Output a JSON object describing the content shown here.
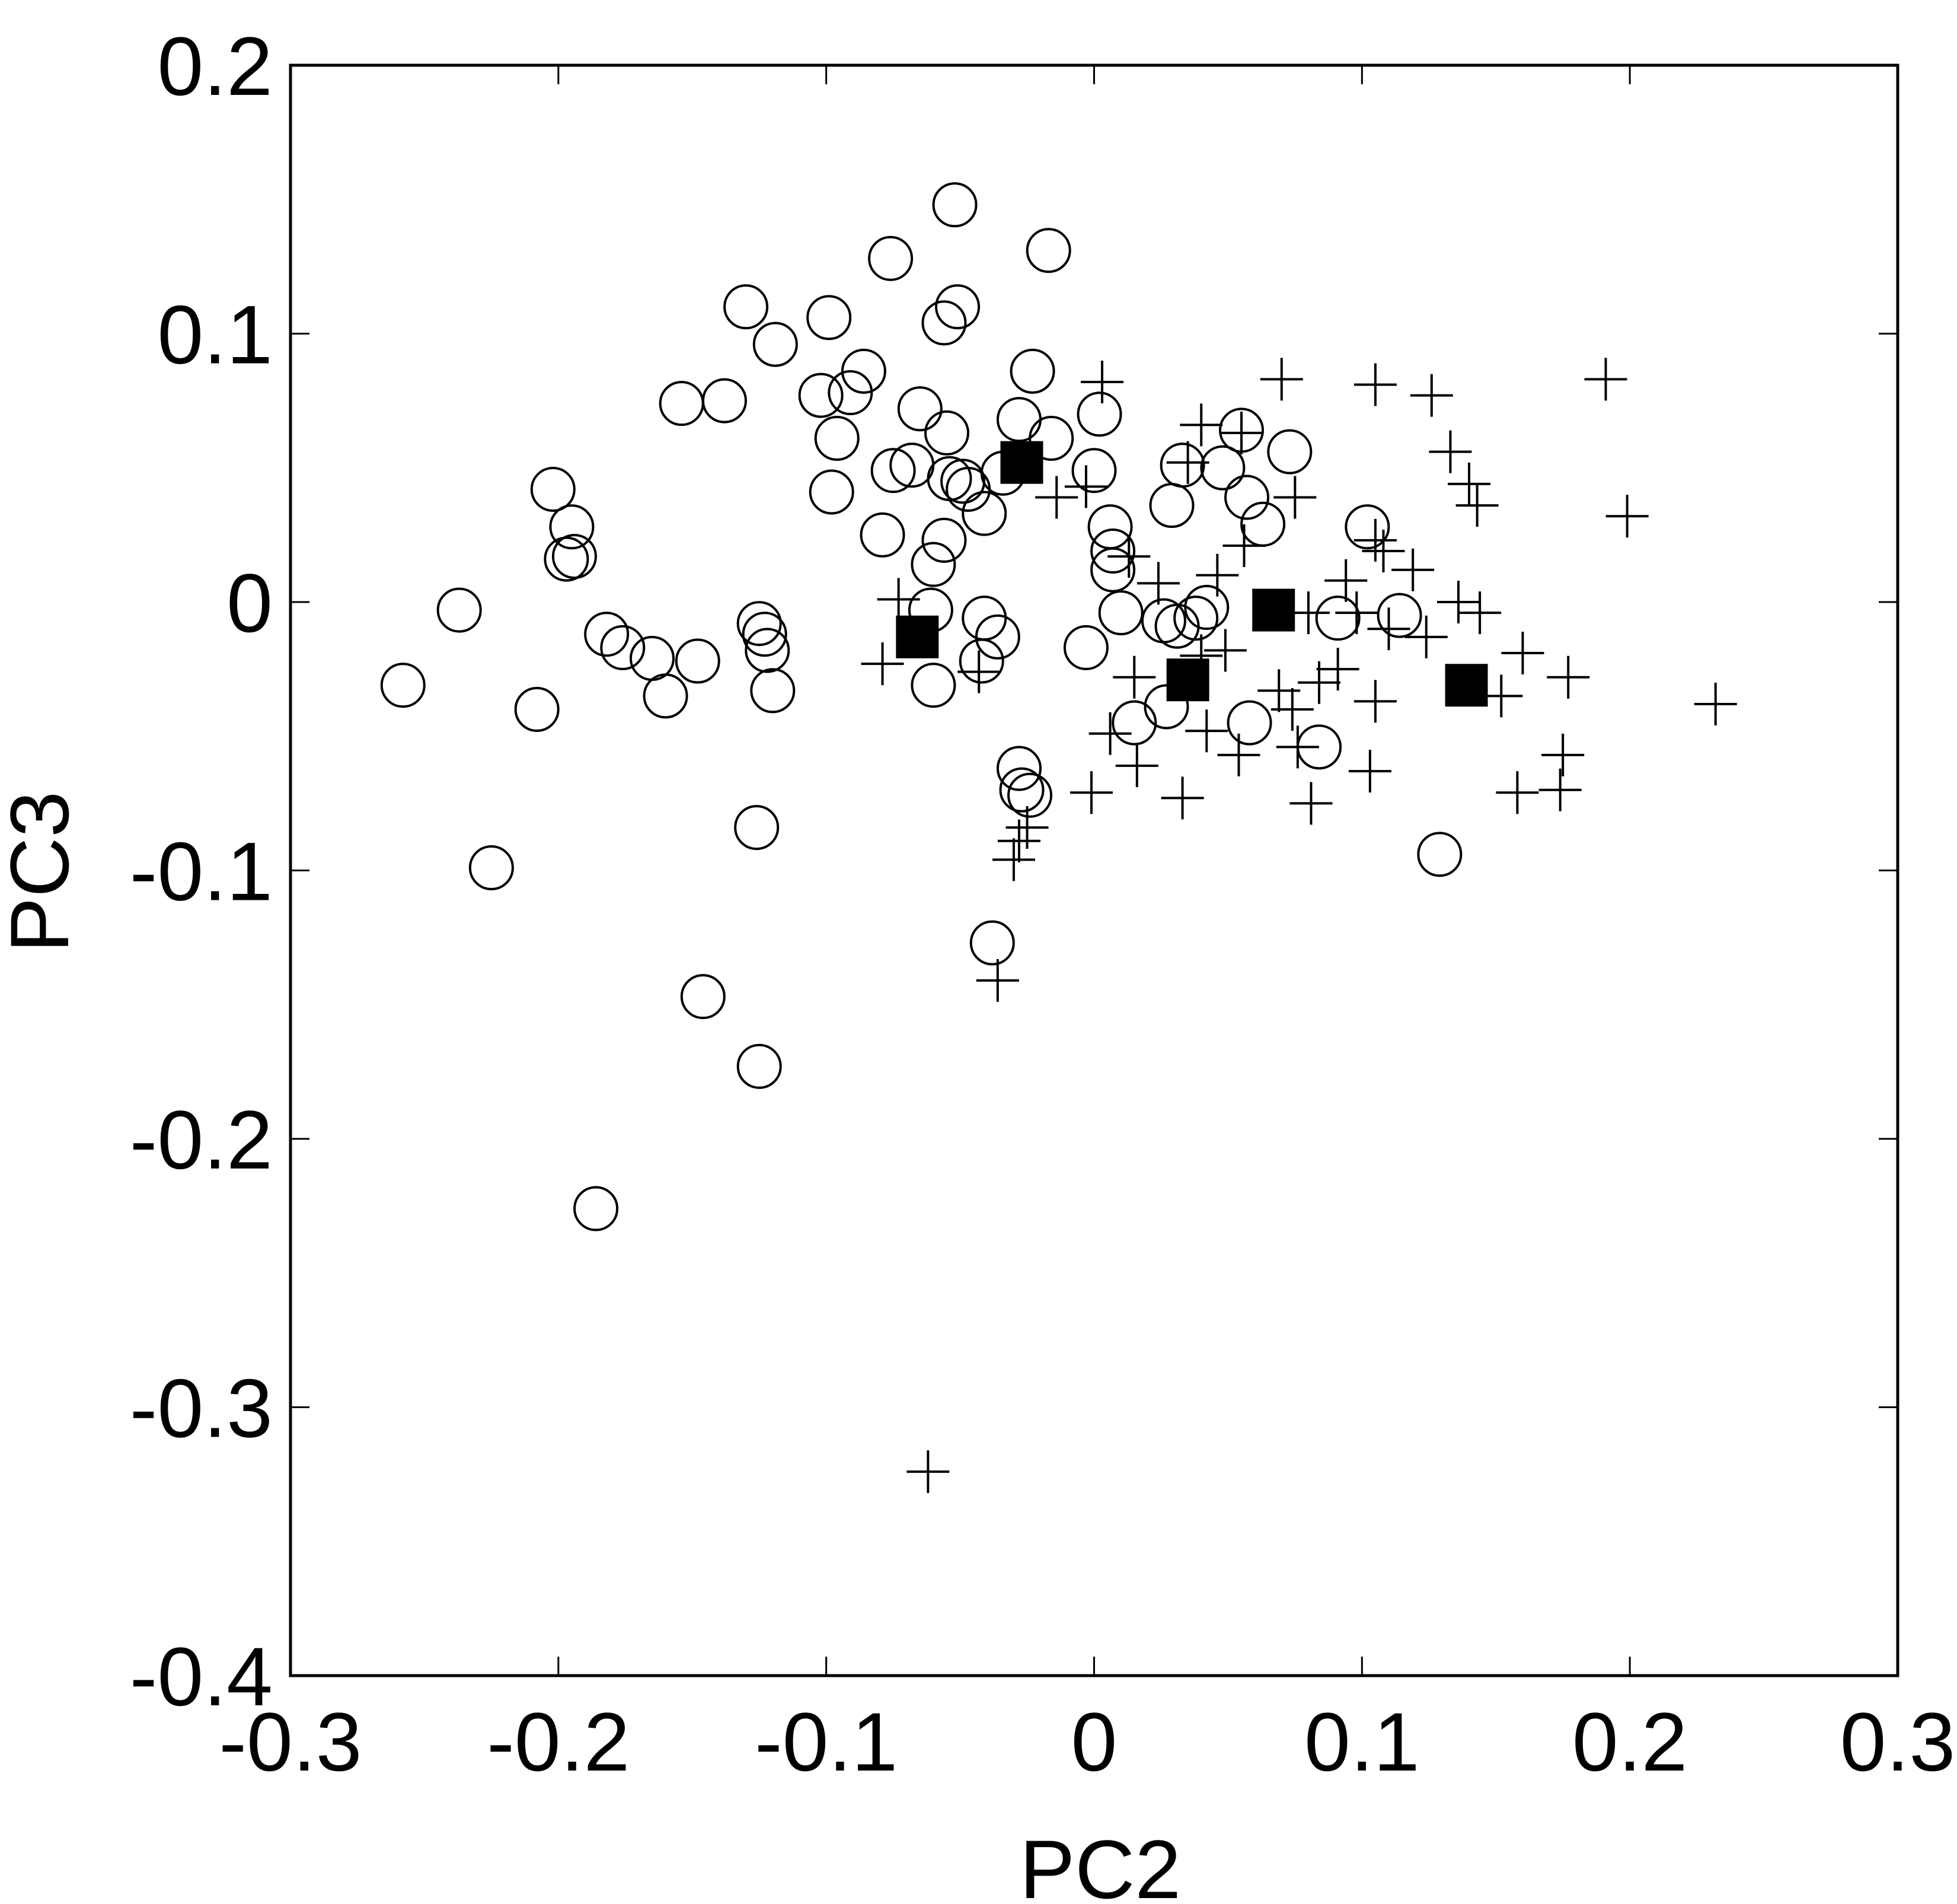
{
  "chart_data": {
    "type": "scatter",
    "x_label": "PC2",
    "y_label": "PC3",
    "xlim": [
      -0.3,
      0.3
    ],
    "ylim": [
      -0.4,
      0.2
    ],
    "xticks": [
      -0.3,
      -0.2,
      -0.1,
      0,
      0.1,
      0.2,
      0.3
    ],
    "yticks": [
      -0.4,
      -0.3,
      -0.2,
      -0.1,
      0,
      0.1,
      0.2
    ],
    "grid": false,
    "series": [
      {
        "marker": "circle",
        "color": "#000000",
        "x": [
          -0.258,
          -0.237,
          -0.225,
          -0.208,
          -0.202,
          -0.195,
          -0.197,
          -0.194,
          -0.186,
          -0.182,
          -0.176,
          -0.165,
          -0.16,
          -0.154,
          -0.148,
          -0.146,
          -0.138,
          -0.13,
          -0.126,
          -0.125,
          -0.125,
          -0.123,
          -0.122,
          -0.12,
          -0.119,
          -0.099,
          -0.102,
          -0.096,
          -0.098,
          -0.091,
          -0.086,
          -0.079,
          -0.076,
          -0.075,
          -0.068,
          -0.065,
          -0.061,
          -0.06,
          -0.06,
          -0.056,
          -0.056,
          -0.055,
          -0.054,
          -0.052,
          -0.051,
          -0.049,
          -0.047,
          -0.041,
          -0.041,
          -0.042,
          -0.038,
          -0.036,
          -0.034,
          -0.028,
          -0.028,
          -0.027,
          -0.024,
          -0.023,
          -0.017,
          -0.016,
          -0.003,
          0.0,
          0.002,
          0.006,
          0.007,
          0.007,
          0.01,
          0.015,
          0.027,
          0.029,
          0.026,
          0.031,
          0.033,
          0.038,
          0.042,
          0.048,
          0.055,
          0.057,
          0.058,
          0.063,
          0.073,
          0.084,
          0.091,
          0.102,
          0.114,
          0.129
        ],
        "values": [
          -0.031,
          -0.003,
          -0.099,
          -0.04,
          0.042,
          0.028,
          0.016,
          0.017,
          -0.226,
          -0.012,
          -0.017,
          -0.021,
          -0.035,
          0.074,
          -0.022,
          -0.147,
          0.075,
          0.11,
          -0.084,
          -0.173,
          -0.008,
          -0.012,
          -0.018,
          -0.033,
          0.096,
          0.106,
          0.077,
          0.061,
          0.041,
          0.078,
          0.086,
          0.025,
          0.128,
          0.049,
          0.051,
          0.072,
          -0.003,
          0.014,
          -0.031,
          0.023,
          0.104,
          0.063,
          0.046,
          0.148,
          0.11,
          0.045,
          0.042,
          0.033,
          -0.006,
          -0.022,
          -0.127,
          -0.013,
          0.048,
          0.068,
          -0.062,
          -0.07,
          -0.072,
          0.086,
          0.131,
          0.061,
          -0.017,
          0.049,
          0.07,
          0.028,
          0.019,
          0.012,
          -0.004,
          -0.045,
          -0.039,
          0.036,
          -0.007,
          -0.009,
          0.051,
          -0.006,
          -0.002,
          0.05,
          0.064,
          0.039,
          -0.045,
          0.029,
          0.056,
          -0.054,
          -0.006,
          0.028,
          -0.005,
          -0.094
        ]
      },
      {
        "marker": "plus",
        "color": "#000000",
        "x": [
          0.003,
          0.07,
          0.105,
          0.126,
          0.191,
          0.133,
          0.14,
          0.143,
          0.199,
          0.04,
          0.035,
          0.055,
          0.075,
          -0.014,
          -0.003,
          0.105,
          0.108,
          0.119,
          0.094,
          0.013,
          0.024,
          0.046,
          0.056,
          0.08,
          0.098,
          0.11,
          0.124,
          0.136,
          0.144,
          0.16,
          0.177,
          0.232,
          0.152,
          0.105,
          0.091,
          0.084,
          0.069,
          0.074,
          0.076,
          0.054,
          0.042,
          0.049,
          0.04,
          0.015,
          0.006,
          0.016,
          0.033,
          0.081,
          0.103,
          0.158,
          0.174,
          0.175,
          -0.001,
          -0.025,
          -0.028,
          -0.03,
          -0.036,
          -0.062,
          -0.043,
          -0.079,
          -0.073
        ],
        "values": [
          0.082,
          0.083,
          0.081,
          0.077,
          0.083,
          0.056,
          0.044,
          0.036,
          0.032,
          0.066,
          0.052,
          0.063,
          0.039,
          0.039,
          0.043,
          0.023,
          0.019,
          0.012,
          0.008,
          0.017,
          0.007,
          0.01,
          0.021,
          -0.004,
          -0.004,
          -0.01,
          -0.013,
          0.0,
          -0.004,
          -0.019,
          -0.028,
          -0.038,
          -0.035,
          -0.037,
          -0.025,
          -0.03,
          -0.033,
          -0.04,
          -0.054,
          -0.057,
          -0.048,
          -0.018,
          -0.02,
          -0.028,
          -0.049,
          -0.061,
          -0.073,
          -0.075,
          -0.063,
          -0.071,
          -0.07,
          -0.057,
          -0.071,
          -0.084,
          -0.089,
          -0.096,
          -0.141,
          -0.324,
          -0.026,
          -0.023,
          0.001
        ]
      },
      {
        "marker": "square",
        "color": "#000000",
        "x": [
          -0.027,
          -0.066,
          0.035,
          0.067,
          0.139
        ],
        "values": [
          0.052,
          -0.013,
          -0.029,
          -0.003,
          -0.031
        ]
      }
    ]
  }
}
